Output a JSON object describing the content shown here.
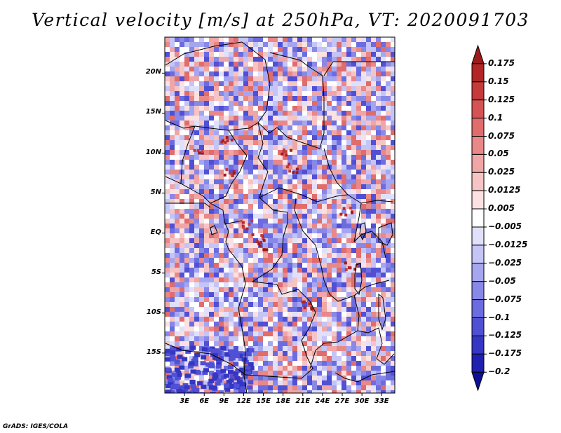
{
  "title": "Vertical velocity [m/s] at 250hPa, VT: 2020091703",
  "credit": "GrADS: IGES/COLA",
  "map": {
    "lat_labels": [
      "20N",
      "15N",
      "10N",
      "5N",
      "EQ",
      "5S",
      "10S",
      "15S"
    ],
    "lon_labels": [
      "3E",
      "6E",
      "9E",
      "12E",
      "15E",
      "18E",
      "21E",
      "24E",
      "27E",
      "30E",
      "33E"
    ],
    "lat_range": [
      -20,
      24.5
    ],
    "lon_range": [
      0,
      35
    ]
  },
  "legend": {
    "levels": [
      "0.175",
      "0.15",
      "0.125",
      "0.1",
      "0.075",
      "0.05",
      "0.025",
      "0.0125",
      "0.005",
      "−0.005",
      "−0.0125",
      "−0.025",
      "−0.05",
      "−0.075",
      "−0.1",
      "−0.125",
      "−0.175",
      "−0.2"
    ],
    "colors": [
      "#9b1b1b",
      "#b32626",
      "#c63a3a",
      "#d65353",
      "#e06c6c",
      "#e88888",
      "#f0a6a6",
      "#f6c4c4",
      "#fbe1e1",
      "#ffffff",
      "#e0e0fb",
      "#c4c4f6",
      "#a6a6f0",
      "#8888e8",
      "#6c6ce0",
      "#5050d4",
      "#3636c4",
      "#2020b0",
      "#0e0e96"
    ]
  }
}
